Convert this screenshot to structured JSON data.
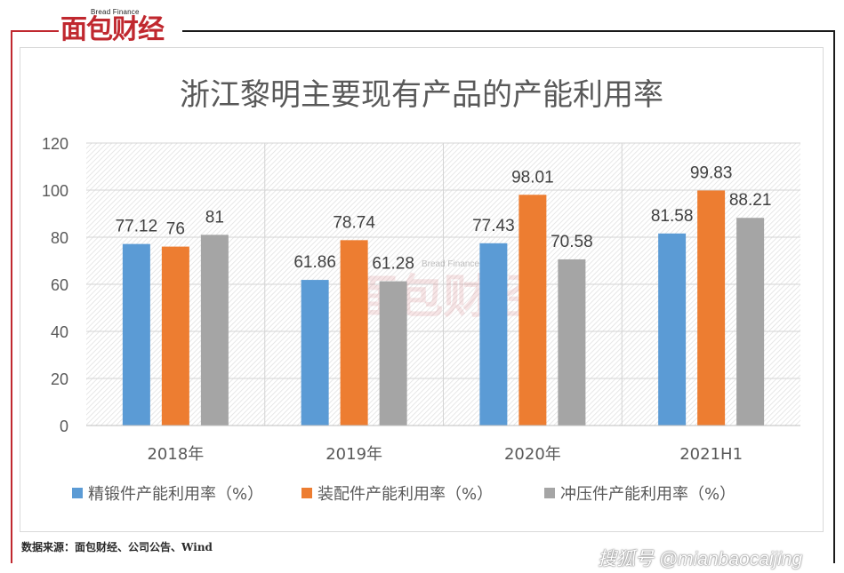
{
  "brand": {
    "logo_text": "面包财经",
    "logo_subtext": "Bread Finance"
  },
  "footer": {
    "source_text": "数据来源：面包财经、公司公告、Wind",
    "platform_text": "搜狐号 @mianbaocaijing"
  },
  "colors": {
    "series_blue": "#5b9bd5",
    "series_orange": "#ed7d31",
    "series_gray": "#a5a5a5",
    "brand_red": "#c0282f"
  },
  "chart_data": {
    "type": "bar",
    "title": "浙江黎明主要现有产品的产能利用率",
    "categories": [
      "2018年",
      "2019年",
      "2020年",
      "2021H1"
    ],
    "series": [
      {
        "name": "精锻件产能利用率（%）",
        "values": [
          77.12,
          61.86,
          77.43,
          81.58
        ],
        "labels": [
          "77.12",
          "61.86",
          "77.43",
          "81.58"
        ]
      },
      {
        "name": "装配件产能利用率（%）",
        "values": [
          76,
          78.74,
          98.01,
          99.83
        ],
        "labels": [
          "76",
          "78.74",
          "98.01",
          "99.83"
        ]
      },
      {
        "name": "冲压件产能利用率（%）",
        "values": [
          81,
          61.28,
          70.58,
          88.21
        ],
        "labels": [
          "81",
          "61.28",
          "70.58",
          "88.21"
        ]
      }
    ],
    "ylim": [
      0,
      120
    ],
    "yticks": [
      0,
      20,
      40,
      60,
      80,
      100,
      120
    ],
    "grid": true,
    "legend_position": "bottom",
    "watermark": {
      "main": "面包财经",
      "sub": "Bread Finance"
    }
  }
}
